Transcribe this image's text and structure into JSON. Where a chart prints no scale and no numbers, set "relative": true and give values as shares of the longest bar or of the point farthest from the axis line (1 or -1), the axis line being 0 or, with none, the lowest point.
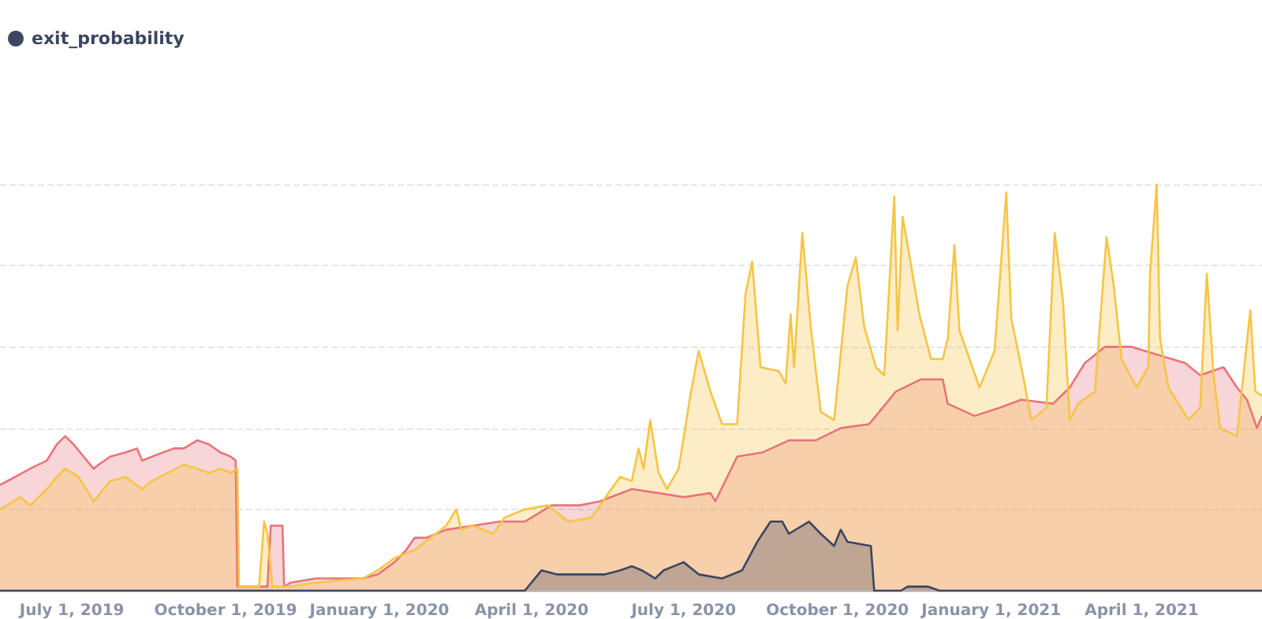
{
  "chart_data": {
    "type": "area",
    "relative": true,
    "grid": "y",
    "legend": "top left",
    "marker": "none",
    "xlim": [
      "2019-05-19",
      "2021-06-12"
    ],
    "xticks": [
      {
        "value": "2019-07-01",
        "label": "July 1, 2019"
      },
      {
        "value": "2019-10-01",
        "label": "October 1, 2019"
      },
      {
        "value": "2020-01-01",
        "label": "January 1, 2020"
      },
      {
        "value": "2020-04-01",
        "label": "April 1, 2020"
      },
      {
        "value": "2020-07-01",
        "label": "July 1, 2020"
      },
      {
        "value": "2020-10-01",
        "label": "October 1, 2020"
      },
      {
        "value": "2021-01-01",
        "label": "January 1, 2021"
      },
      {
        "value": "2021-04-01",
        "label": "April 1, 2021"
      }
    ],
    "series": [
      {
        "color": "#e8737a",
        "x": [
          "2019-05-19",
          "2019-05-28",
          "2019-06-06",
          "2019-06-16",
          "2019-06-22",
          "2019-06-27",
          "2019-07-02",
          "2019-07-08",
          "2019-07-14",
          "2019-07-17",
          "2019-07-24",
          "2019-08-02",
          "2019-08-09",
          "2019-08-12",
          "2019-08-18",
          "2019-08-31",
          "2019-09-06",
          "2019-09-14",
          "2019-09-21",
          "2019-09-28",
          "2019-10-04",
          "2019-10-07",
          "2019-10-08",
          "2019-10-26",
          "2019-10-28",
          "2019-11-04",
          "2019-11-05",
          "2019-11-09",
          "2019-11-24",
          "2019-12-22",
          "2019-12-31",
          "2020-01-10",
          "2020-01-17",
          "2020-01-22",
          "2020-01-29",
          "2020-02-10",
          "2020-02-26",
          "2020-03-13",
          "2020-03-28",
          "2020-04-13",
          "2020-04-30",
          "2020-05-12",
          "2020-05-31",
          "2020-06-16",
          "2020-07-01",
          "2020-07-17",
          "2020-07-20",
          "2020-08-02",
          "2020-08-17",
          "2020-09-02",
          "2020-09-18",
          "2020-10-03",
          "2020-10-20",
          "2020-11-05",
          "2020-11-20",
          "2020-12-03",
          "2020-12-06",
          "2020-12-22",
          "2021-01-06",
          "2021-01-19",
          "2021-02-07",
          "2021-02-17",
          "2021-02-26",
          "2021-03-10",
          "2021-03-26",
          "2021-04-11",
          "2021-04-27",
          "2021-05-06",
          "2021-05-20",
          "2021-05-28",
          "2021-06-03",
          "2021-06-09",
          "2021-06-12"
        ],
        "values": [
          0.26,
          0.28,
          0.3,
          0.32,
          0.36,
          0.38,
          0.36,
          0.33,
          0.3,
          0.31,
          0.33,
          0.34,
          0.35,
          0.32,
          0.33,
          0.35,
          0.35,
          0.37,
          0.36,
          0.34,
          0.33,
          0.32,
          0.01,
          0.01,
          0.16,
          0.16,
          0.01,
          0.02,
          0.03,
          0.03,
          0.04,
          0.07,
          0.1,
          0.13,
          0.13,
          0.15,
          0.16,
          0.17,
          0.17,
          0.21,
          0.21,
          0.22,
          0.25,
          0.24,
          0.23,
          0.24,
          0.22,
          0.33,
          0.34,
          0.37,
          0.37,
          0.4,
          0.41,
          0.49,
          0.52,
          0.52,
          0.46,
          0.43,
          0.45,
          0.47,
          0.46,
          0.5,
          0.56,
          0.6,
          0.6,
          0.58,
          0.56,
          0.53,
          0.55,
          0.5,
          0.47,
          0.4,
          0.43
        ]
      },
      {
        "color": "#f6c544",
        "x": [
          "2019-05-19",
          "2019-05-31",
          "2019-06-06",
          "2019-06-16",
          "2019-06-22",
          "2019-06-27",
          "2019-07-05",
          "2019-07-14",
          "2019-07-24",
          "2019-08-02",
          "2019-08-12",
          "2019-08-18",
          "2019-09-06",
          "2019-09-14",
          "2019-09-21",
          "2019-09-28",
          "2019-10-04",
          "2019-10-08",
          "2019-10-09",
          "2019-10-21",
          "2019-10-24",
          "2019-10-26",
          "2019-10-29",
          "2019-11-05",
          "2019-11-09",
          "2019-11-24",
          "2019-12-22",
          "2019-12-31",
          "2020-01-10",
          "2020-01-22",
          "2020-02-10",
          "2020-02-16",
          "2020-02-19",
          "2020-02-26",
          "2020-03-09",
          "2020-03-16",
          "2020-03-28",
          "2020-04-11",
          "2020-04-23",
          "2020-05-07",
          "2020-05-17",
          "2020-05-24",
          "2020-05-31",
          "2020-06-04",
          "2020-06-07",
          "2020-06-11",
          "2020-06-16",
          "2020-06-21",
          "2020-06-28",
          "2020-07-05",
          "2020-07-10",
          "2020-07-17",
          "2020-07-24",
          "2020-08-02",
          "2020-08-07",
          "2020-08-11",
          "2020-08-16",
          "2020-08-27",
          "2020-08-31",
          "2020-09-03",
          "2020-09-05",
          "2020-09-10",
          "2020-09-15",
          "2020-09-21",
          "2020-09-29",
          "2020-10-07",
          "2020-10-12",
          "2020-10-17",
          "2020-10-24",
          "2020-10-29",
          "2020-11-04",
          "2020-11-06",
          "2020-11-09",
          "2020-11-12",
          "2020-11-19",
          "2020-11-26",
          "2020-12-03",
          "2020-12-06",
          "2020-12-10",
          "2020-12-13",
          "2020-12-25",
          "2021-01-03",
          "2021-01-10",
          "2021-01-13",
          "2021-01-20",
          "2021-01-25",
          "2021-02-03",
          "2021-02-08",
          "2021-02-13",
          "2021-02-17",
          "2021-02-22",
          "2021-03-04",
          "2021-03-11",
          "2021-03-15",
          "2021-03-20",
          "2021-03-29",
          "2021-04-05",
          "2021-04-06",
          "2021-04-10",
          "2021-04-12",
          "2021-04-17",
          "2021-04-29",
          "2021-05-06",
          "2021-05-10",
          "2021-05-14",
          "2021-05-18",
          "2021-05-28",
          "2021-06-05",
          "2021-06-08",
          "2021-06-12"
        ],
        "values": [
          0.2,
          0.23,
          0.21,
          0.25,
          0.28,
          0.3,
          0.28,
          0.22,
          0.27,
          0.28,
          0.25,
          0.27,
          0.31,
          0.3,
          0.29,
          0.3,
          0.29,
          0.3,
          0.01,
          0.01,
          0.17,
          0.14,
          0.01,
          0.01,
          0.01,
          0.02,
          0.03,
          0.05,
          0.08,
          0.1,
          0.16,
          0.2,
          0.15,
          0.16,
          0.14,
          0.18,
          0.2,
          0.21,
          0.17,
          0.18,
          0.24,
          0.28,
          0.27,
          0.35,
          0.3,
          0.42,
          0.29,
          0.25,
          0.3,
          0.48,
          0.59,
          0.49,
          0.41,
          0.41,
          0.73,
          0.81,
          0.55,
          0.54,
          0.51,
          0.68,
          0.55,
          0.88,
          0.65,
          0.44,
          0.42,
          0.75,
          0.82,
          0.65,
          0.55,
          0.53,
          0.97,
          0.64,
          0.92,
          0.85,
          0.68,
          0.57,
          0.57,
          0.62,
          0.85,
          0.64,
          0.5,
          0.59,
          0.98,
          0.67,
          0.53,
          0.42,
          0.45,
          0.88,
          0.71,
          0.42,
          0.46,
          0.49,
          0.87,
          0.76,
          0.57,
          0.5,
          0.55,
          0.78,
          1,
          0.62,
          0.5,
          0.42,
          0.45,
          0.78,
          0.53,
          0.4,
          0.38,
          0.69,
          0.49,
          0.48
        ]
      },
      {
        "name": "exit_probability",
        "color": "#3b4660",
        "x": [
          "2019-05-19",
          "2020-03-26",
          "2020-03-28",
          "2020-04-07",
          "2020-04-16",
          "2020-04-30",
          "2020-05-15",
          "2020-05-24",
          "2020-05-31",
          "2020-06-06",
          "2020-06-14",
          "2020-06-19",
          "2020-07-01",
          "2020-07-10",
          "2020-07-24",
          "2020-08-05",
          "2020-08-14",
          "2020-08-22",
          "2020-08-29",
          "2020-09-02",
          "2020-09-14",
          "2020-09-21",
          "2020-09-29",
          "2020-10-03",
          "2020-10-07",
          "2020-10-21",
          "2020-10-23",
          "2020-11-08",
          "2020-11-12",
          "2020-11-24",
          "2020-12-01",
          "2021-06-12"
        ],
        "values": [
          0,
          0,
          0,
          0.05,
          0.04,
          0.04,
          0.04,
          0.05,
          0.06,
          0.05,
          0.03,
          0.05,
          0.07,
          0.04,
          0.03,
          0.05,
          0.12,
          0.17,
          0.17,
          0.14,
          0.17,
          0.14,
          0.11,
          0.15,
          0.12,
          0.11,
          0,
          0,
          0.01,
          0.01,
          0,
          0
        ]
      }
    ]
  }
}
